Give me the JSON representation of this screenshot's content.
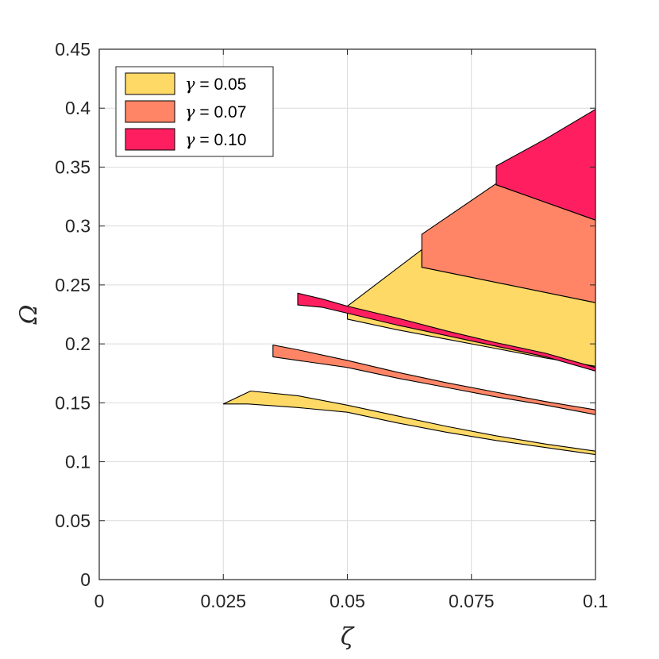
{
  "chart_data": {
    "type": "area",
    "xlabel": "ζ",
    "ylabel": "Ω",
    "xlim": [
      0,
      0.1
    ],
    "ylim": [
      0,
      0.45
    ],
    "xticks": [
      0,
      0.025,
      0.05,
      0.075,
      0.1
    ],
    "xtick_labels": [
      "0",
      "0.025",
      "0.05",
      "0.075",
      "0.1"
    ],
    "yticks": [
      0,
      0.05,
      0.1,
      0.15,
      0.2,
      0.25,
      0.3,
      0.35,
      0.4,
      0.45
    ],
    "ytick_labels": [
      "0",
      "0.05",
      "0.1",
      "0.15",
      "0.2",
      "0.25",
      "0.3",
      "0.35",
      "0.4",
      "0.45"
    ],
    "grid": true,
    "legend_position": "top-left",
    "legend_symbol": "γ",
    "series": [
      {
        "name": "= 0.05",
        "color": "#FFD966",
        "regions": [
          [
            [
              0.025,
              0.149
            ],
            [
              0.0305,
              0.16
            ],
            [
              0.04,
              0.156
            ],
            [
              0.05,
              0.148
            ],
            [
              0.06,
              0.139
            ],
            [
              0.07,
              0.13
            ],
            [
              0.08,
              0.122
            ],
            [
              0.09,
              0.115
            ],
            [
              0.1,
              0.109
            ],
            [
              0.1,
              0.106
            ],
            [
              0.09,
              0.112
            ],
            [
              0.08,
              0.118
            ],
            [
              0.07,
              0.125
            ],
            [
              0.06,
              0.133
            ],
            [
              0.05,
              0.142
            ],
            [
              0.04,
              0.146
            ],
            [
              0.03,
              0.149
            ],
            [
              0.025,
              0.149
            ]
          ],
          [
            [
              0.05,
              0.221
            ],
            [
              0.05,
              0.232
            ],
            [
              0.065,
              0.28
            ],
            [
              0.065,
              0.265
            ],
            [
              0.1,
              0.235
            ],
            [
              0.1,
              0.181
            ],
            [
              0.09,
              0.188
            ],
            [
              0.08,
              0.196
            ],
            [
              0.07,
              0.204
            ],
            [
              0.06,
              0.212
            ],
            [
              0.05,
              0.221
            ]
          ]
        ]
      },
      {
        "name": "= 0.07",
        "color": "#FF8566",
        "regions": [
          [
            [
              0.035,
              0.189
            ],
            [
              0.035,
              0.199
            ],
            [
              0.04,
              0.195
            ],
            [
              0.05,
              0.186
            ],
            [
              0.06,
              0.176
            ],
            [
              0.07,
              0.167
            ],
            [
              0.08,
              0.159
            ],
            [
              0.09,
              0.151
            ],
            [
              0.1,
              0.144
            ],
            [
              0.1,
              0.14
            ],
            [
              0.09,
              0.148
            ],
            [
              0.08,
              0.155
            ],
            [
              0.07,
              0.163
            ],
            [
              0.06,
              0.171
            ],
            [
              0.05,
              0.18
            ],
            [
              0.04,
              0.186
            ],
            [
              0.035,
              0.189
            ]
          ],
          [
            [
              0.065,
              0.265
            ],
            [
              0.065,
              0.293
            ],
            [
              0.08,
              0.336
            ],
            [
              0.08,
              0.335
            ],
            [
              0.1,
              0.305
            ],
            [
              0.1,
              0.235
            ],
            [
              0.065,
              0.265
            ]
          ]
        ]
      },
      {
        "name": "= 0.10",
        "color": "#FF1F61",
        "regions": [
          [
            [
              0.04,
              0.233
            ],
            [
              0.04,
              0.243
            ],
            [
              0.045,
              0.238
            ],
            [
              0.05,
              0.232
            ],
            [
              0.06,
              0.222
            ],
            [
              0.07,
              0.211
            ],
            [
              0.08,
              0.201
            ],
            [
              0.09,
              0.192
            ],
            [
              0.1,
              0.18
            ],
            [
              0.1,
              0.177
            ],
            [
              0.09,
              0.189
            ],
            [
              0.08,
              0.198
            ],
            [
              0.07,
              0.207
            ],
            [
              0.06,
              0.216
            ],
            [
              0.05,
              0.226
            ],
            [
              0.045,
              0.231
            ],
            [
              0.04,
              0.233
            ]
          ],
          [
            [
              0.08,
              0.335
            ],
            [
              0.08,
              0.351
            ],
            [
              0.09,
              0.374
            ],
            [
              0.1,
              0.399
            ],
            [
              0.1,
              0.305
            ],
            [
              0.08,
              0.335
            ]
          ]
        ]
      }
    ]
  }
}
